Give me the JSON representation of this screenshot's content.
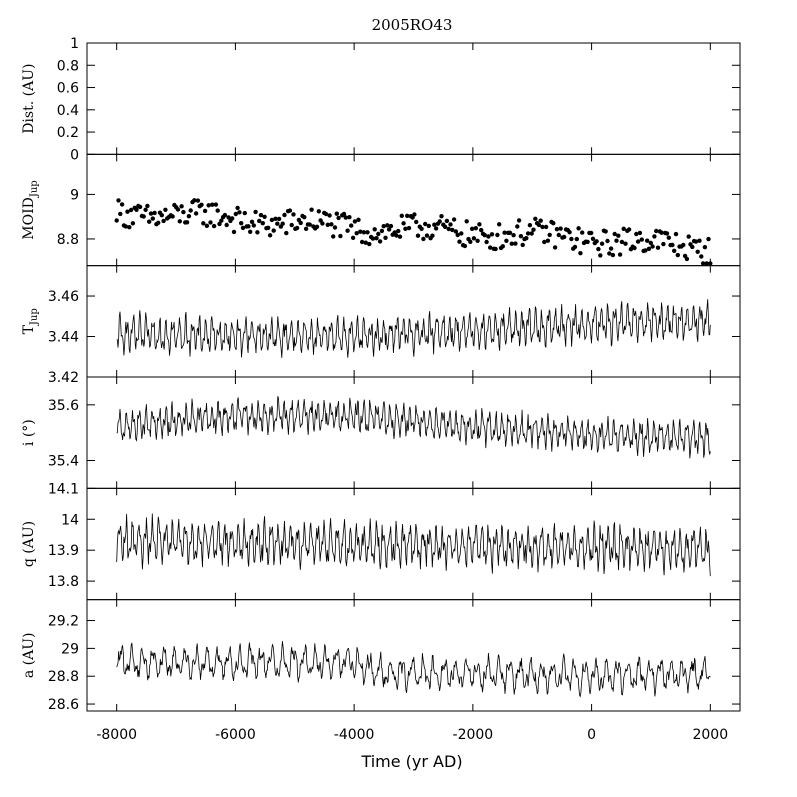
{
  "chart_data": {
    "type": "line",
    "title": "2005RO43",
    "xlabel": "Time (yr AD)",
    "xlim": [
      -8500,
      2500
    ],
    "x_ticks": [
      -8000,
      -6000,
      -4000,
      -2000,
      0,
      2000
    ],
    "x_tick_labels": [
      "-8000",
      "-6000",
      "-4000",
      "-2000",
      "0",
      "2000"
    ],
    "x_range": [
      -8000,
      2000
    ],
    "panels": [
      {
        "id": "dist",
        "ylabel": "Dist. (AU)",
        "ylabel_main": "Dist. (AU)",
        "ylabel_sub": "",
        "ylim": [
          0,
          1
        ],
        "y_ticks": [
          0,
          0.2,
          0.4,
          0.6,
          0.8,
          1
        ],
        "y_tick_labels": [
          "0",
          "0.2",
          "0.4",
          "0.6",
          "0.8",
          "1"
        ],
        "style": "none",
        "series": []
      },
      {
        "id": "moid",
        "ylabel": "MOIDJup",
        "ylabel_main": "MOID",
        "ylabel_sub": "Jup",
        "ylim": [
          8.68,
          9.18
        ],
        "y_ticks": [
          8.8,
          9
        ],
        "y_tick_labels": [
          "8.8",
          "9"
        ],
        "style": "points",
        "trend": [
          [
            -8000,
            8.92
          ],
          [
            -6000,
            8.89
          ],
          [
            -4000,
            8.85
          ],
          [
            -2000,
            8.83
          ],
          [
            0,
            8.8
          ],
          [
            2000,
            8.76
          ]
        ],
        "cycles": 200,
        "amplitude": 0.06
      },
      {
        "id": "tjup",
        "ylabel": "TJup",
        "ylabel_main": "T",
        "ylabel_sub": "Jup",
        "ylim": [
          3.42,
          3.475
        ],
        "y_ticks": [
          3.42,
          3.44,
          3.46
        ],
        "y_tick_labels": [
          "3.42",
          "3.44",
          "3.46"
        ],
        "style": "line",
        "trend": [
          [
            -8000,
            3.441
          ],
          [
            -4000,
            3.44
          ],
          [
            -2000,
            3.443
          ],
          [
            0,
            3.446
          ],
          [
            2000,
            3.448
          ]
        ],
        "cycles": 90,
        "amplitude": 0.009
      },
      {
        "id": "incl",
        "ylabel": "i (°)",
        "ylabel_main": "i (°)",
        "ylabel_sub": "",
        "ylim": [
          35.3,
          35.7
        ],
        "y_ticks": [
          35.4,
          35.6
        ],
        "y_tick_labels": [
          "35.4",
          "35.6"
        ],
        "style": "line",
        "trend": [
          [
            -8000,
            35.52
          ],
          [
            -6000,
            35.56
          ],
          [
            -4000,
            35.56
          ],
          [
            -2000,
            35.52
          ],
          [
            0,
            35.49
          ],
          [
            2000,
            35.48
          ]
        ],
        "cycles": 90,
        "amplitude": 0.06
      },
      {
        "id": "q",
        "ylabel": "q (AU)",
        "ylabel_main": "q (AU)",
        "ylabel_sub": "",
        "ylim": [
          13.74,
          14.1
        ],
        "y_ticks": [
          13.8,
          13.9,
          14,
          14.1
        ],
        "y_tick_labels": [
          "13.8",
          "13.9",
          "14",
          "14.1"
        ],
        "style": "line",
        "trend": [
          [
            -8000,
            13.93
          ],
          [
            -4000,
            13.92
          ],
          [
            0,
            13.91
          ],
          [
            2000,
            13.9
          ]
        ],
        "cycles": 90,
        "amplitude": 0.07
      },
      {
        "id": "a",
        "ylabel": "a (AU)",
        "ylabel_main": "a (AU)",
        "ylabel_sub": "",
        "ylim": [
          28.55,
          29.35
        ],
        "y_ticks": [
          28.6,
          28.8,
          29,
          29.2
        ],
        "y_tick_labels": [
          "28.6",
          "28.8",
          "29",
          "29.2"
        ],
        "style": "line",
        "trend": [
          [
            -8000,
            28.9
          ],
          [
            -6000,
            28.9
          ],
          [
            -4000,
            28.9
          ],
          [
            -3500,
            28.82
          ],
          [
            -2000,
            28.82
          ],
          [
            0,
            28.8
          ],
          [
            2000,
            28.82
          ]
        ],
        "cycles": 55,
        "amplitude": 0.12
      }
    ]
  }
}
